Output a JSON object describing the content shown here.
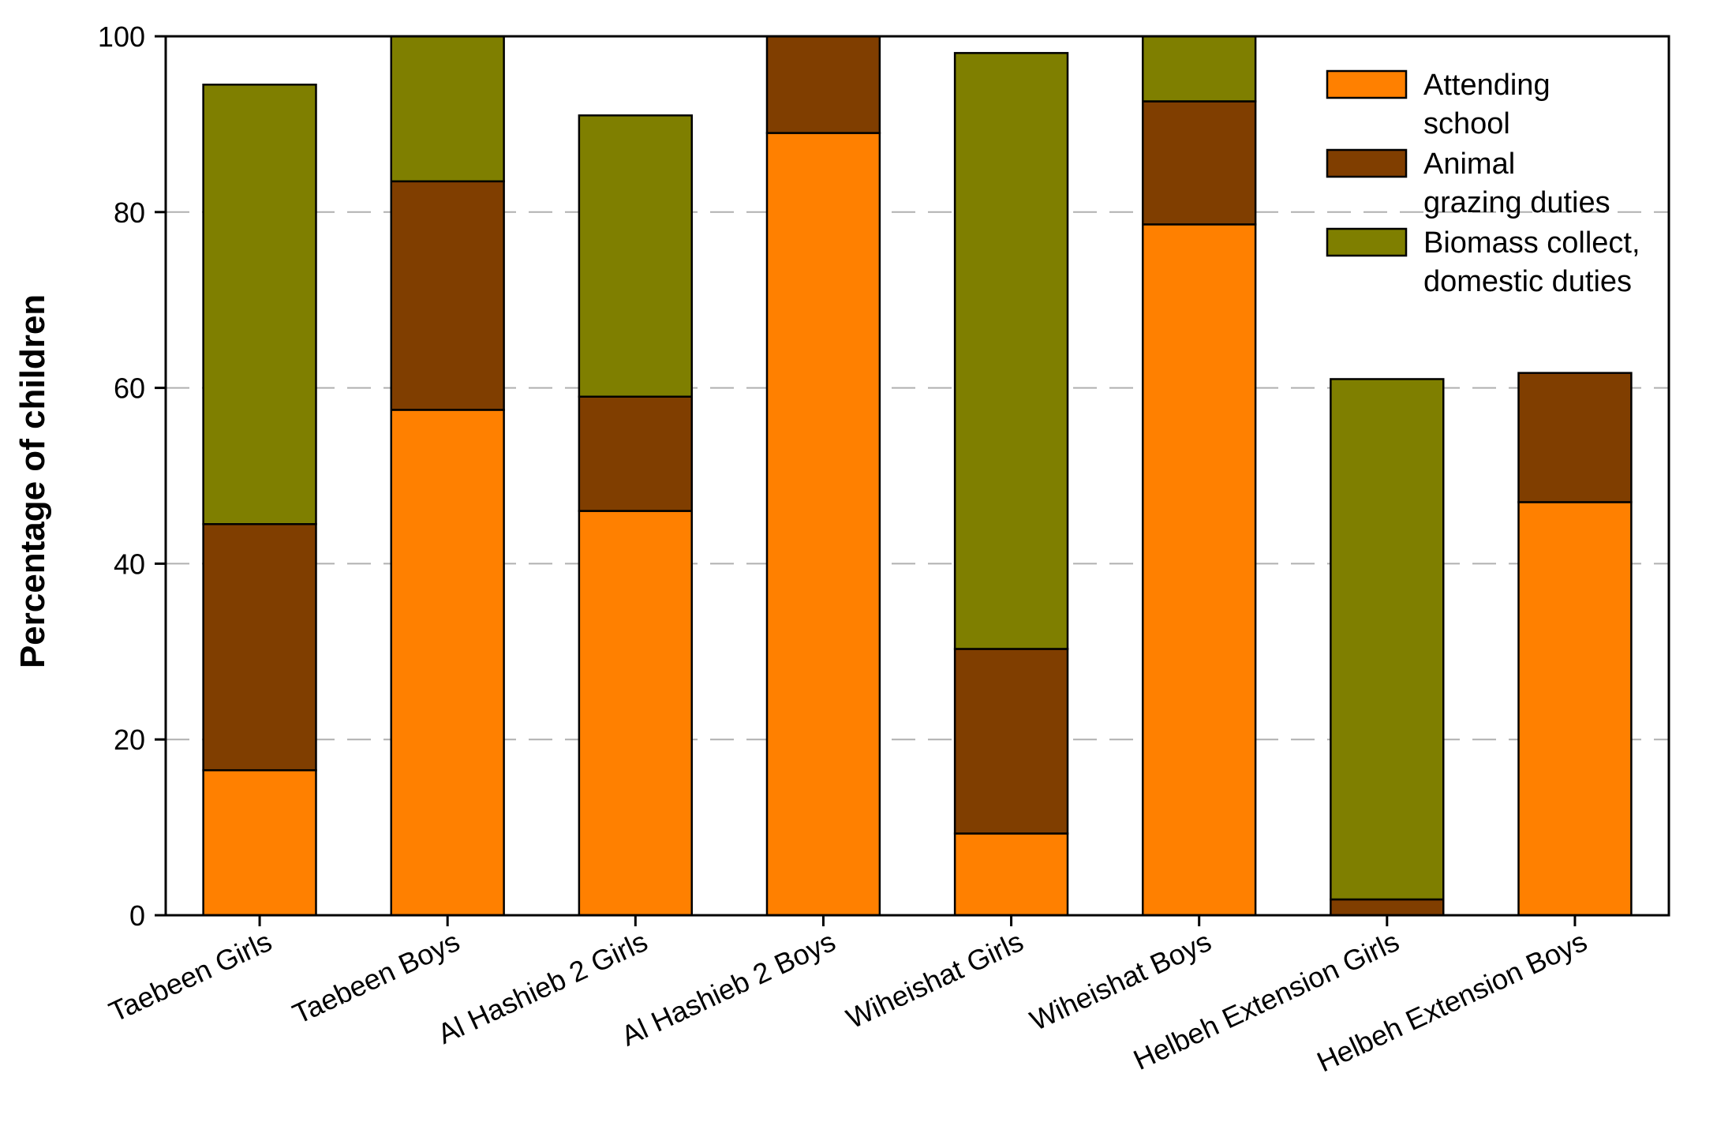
{
  "chart_data": {
    "type": "bar",
    "stacked": true,
    "title": "",
    "xlabel": "",
    "ylabel": "Percentage of children",
    "ylim": [
      0,
      100
    ],
    "yticks": [
      0,
      20,
      40,
      60,
      80,
      100
    ],
    "grid": true,
    "legend_position": "top-right",
    "categories": [
      "Taebeen Girls",
      "Taebeen Boys",
      "Al Hashieb 2 Girls",
      "Al Hashieb 2 Boys",
      "Wiheishat Girls",
      "Wiheishat Boys",
      "Helbeh Extension Girls",
      "Helbeh Extension Boys"
    ],
    "series": [
      {
        "name": "Attending school",
        "legend_lines": [
          "Attending",
          "school"
        ],
        "color": "#FF8000",
        "values": [
          16.5,
          57.5,
          46,
          89,
          9.3,
          78.6,
          0,
          47
        ]
      },
      {
        "name": "Animal grazing duties",
        "legend_lines": [
          "Animal",
          "grazing duties"
        ],
        "color": "#803E00",
        "values": [
          28,
          26,
          13,
          11,
          21,
          14,
          1.8,
          14.7
        ]
      },
      {
        "name": "Biomass collect, domestic duties",
        "legend_lines": [
          "Biomass collect,",
          "domestic duties"
        ],
        "color": "#7F7F00",
        "values": [
          50,
          16.5,
          32,
          0,
          67.8,
          7.4,
          59.2,
          0
        ]
      }
    ]
  }
}
